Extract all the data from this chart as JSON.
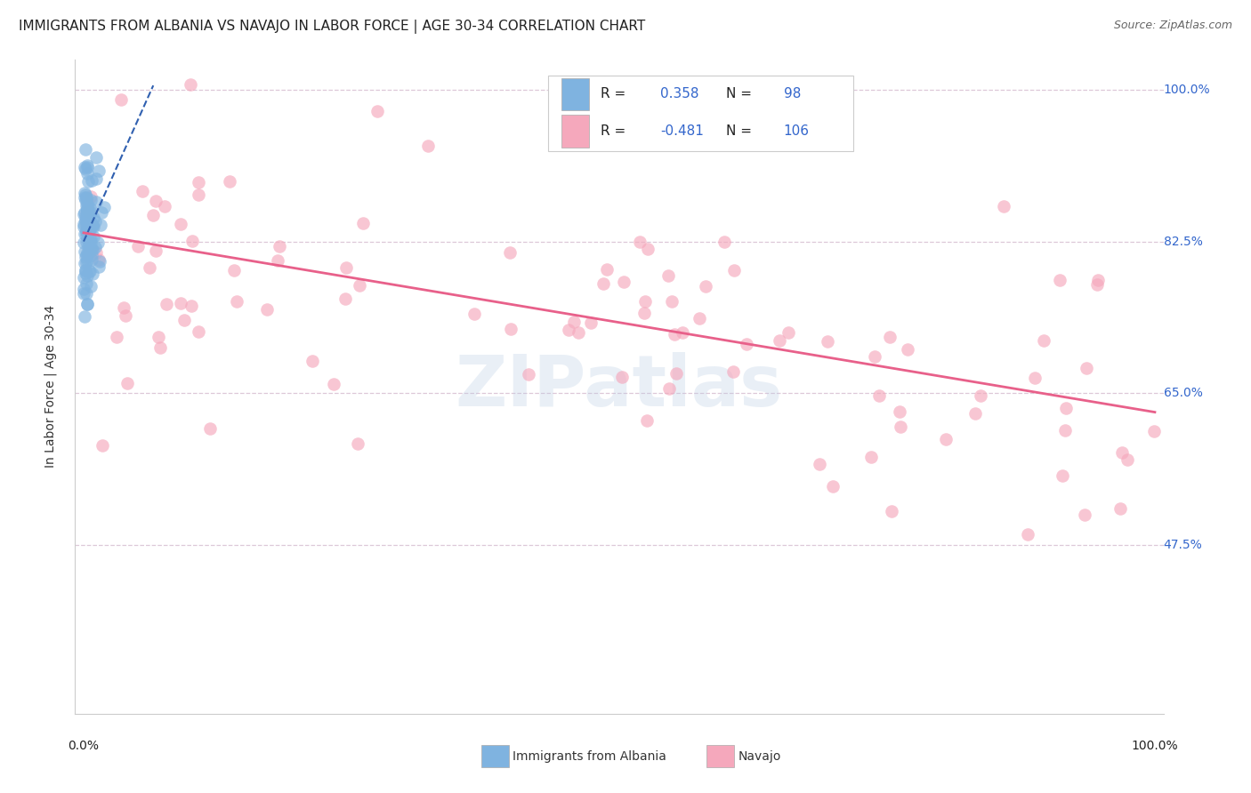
{
  "title": "IMMIGRANTS FROM ALBANIA VS NAVAJO IN LABOR FORCE | AGE 30-34 CORRELATION CHART",
  "source": "Source: ZipAtlas.com",
  "ylabel": "In Labor Force | Age 30-34",
  "ymin": 0.28,
  "ymax": 1.035,
  "xmin": -0.008,
  "xmax": 1.008,
  "albania_R": 0.358,
  "albania_N": 98,
  "navajo_R": -0.481,
  "navajo_N": 106,
  "albania_color": "#7fb3e0",
  "navajo_color": "#f5a8bc",
  "albania_line_color": "#3060b0",
  "navajo_line_color": "#e8608a",
  "background_color": "#ffffff",
  "grid_color": "#ddc8d8",
  "watermark": "ZIPatlas",
  "navajo_trend_x0": 0.0,
  "navajo_trend_y0": 0.835,
  "navajo_trend_x1": 1.0,
  "navajo_trend_y1": 0.628,
  "albania_trend_x0": 0.0,
  "albania_trend_y0": 0.825,
  "albania_trend_x1": 0.065,
  "albania_trend_y1": 1.005,
  "ytick_vals": [
    0.475,
    0.65,
    0.825,
    1.0
  ],
  "ytick_labels": [
    "47.5%",
    "65.0%",
    "82.5%",
    "100.0%"
  ]
}
